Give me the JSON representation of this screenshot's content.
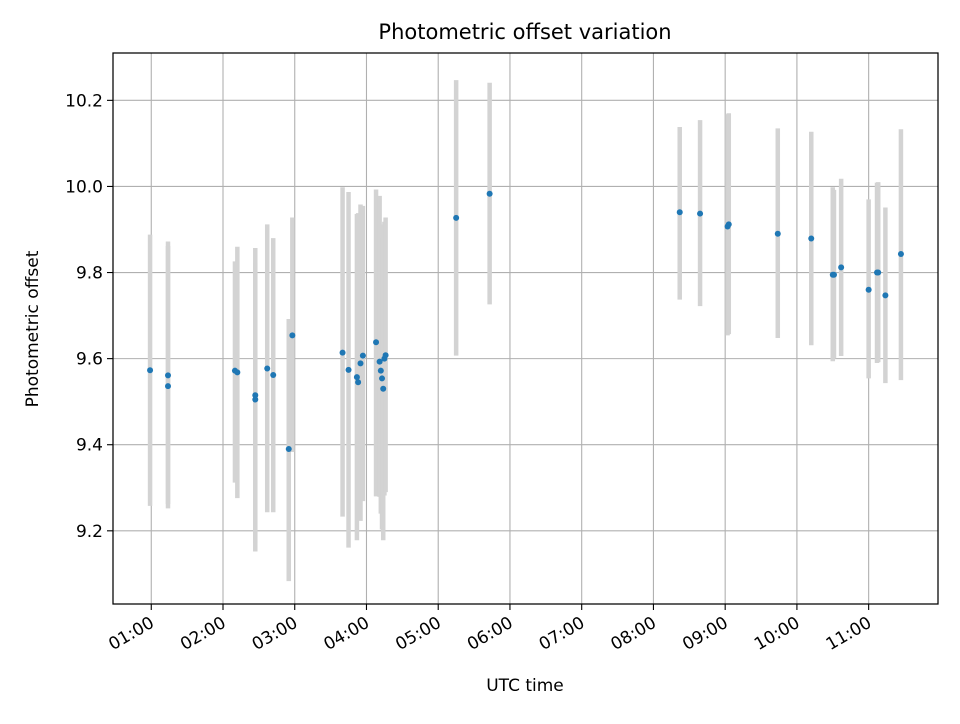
{
  "chart_data": {
    "type": "scatter",
    "title": "Photometric offset variation",
    "xlabel": "UTC time",
    "ylabel": "Photometric offset",
    "x_axis": "time",
    "x_ticks": [
      "01:00",
      "02:00",
      "03:00",
      "04:00",
      "05:00",
      "06:00",
      "07:00",
      "08:00",
      "09:00",
      "10:00",
      "11:00"
    ],
    "y_ticks": [
      "9.2",
      "9.4",
      "9.6",
      "9.8",
      "10.0",
      "10.2"
    ],
    "xlim": [
      "00:28",
      "11:58"
    ],
    "ylim": [
      9.03,
      10.31
    ],
    "grid": true,
    "marker_color": "#1f77b4",
    "errorbar_color": "#d3d3d3",
    "points": [
      {
        "x": "00:59",
        "y": 9.573,
        "err_low": 9.258,
        "err_high": 9.888
      },
      {
        "x": "01:14",
        "y": 9.561,
        "err_low": 9.262,
        "err_high": 9.862
      },
      {
        "x": "01:14",
        "y": 9.536,
        "err_low": 9.252,
        "err_high": 9.872
      },
      {
        "x": "02:10",
        "y": 9.572,
        "err_low": 9.312,
        "err_high": 9.826
      },
      {
        "x": "02:12",
        "y": 9.568,
        "err_low": 9.276,
        "err_high": 9.86
      },
      {
        "x": "02:27",
        "y": 9.515,
        "err_low": 9.171,
        "err_high": 9.857
      },
      {
        "x": "02:27",
        "y": 9.505,
        "err_low": 9.152,
        "err_high": 9.822
      },
      {
        "x": "02:37",
        "y": 9.577,
        "err_low": 9.243,
        "err_high": 9.912
      },
      {
        "x": "02:42",
        "y": 9.562,
        "err_low": 9.243,
        "err_high": 9.88
      },
      {
        "x": "02:55",
        "y": 9.39,
        "err_low": 9.083,
        "err_high": 9.692
      },
      {
        "x": "02:58",
        "y": 9.654,
        "err_low": 9.383,
        "err_high": 9.928
      },
      {
        "x": "03:40",
        "y": 9.614,
        "err_low": 9.233,
        "err_high": 9.998
      },
      {
        "x": "03:45",
        "y": 9.574,
        "err_low": 9.161,
        "err_high": 9.987
      },
      {
        "x": "03:52",
        "y": 9.557,
        "err_low": 9.178,
        "err_high": 9.936
      },
      {
        "x": "03:53",
        "y": 9.545,
        "err_low": 9.27,
        "err_high": 9.938
      },
      {
        "x": "03:55",
        "y": 9.589,
        "err_low": 9.223,
        "err_high": 9.958
      },
      {
        "x": "03:57",
        "y": 9.607,
        "err_low": 9.269,
        "err_high": 9.955
      },
      {
        "x": "04:08",
        "y": 9.638,
        "err_low": 9.28,
        "err_high": 9.993
      },
      {
        "x": "04:11",
        "y": 9.593,
        "err_low": 9.279,
        "err_high": 9.978
      },
      {
        "x": "04:12",
        "y": 9.572,
        "err_low": 9.24,
        "err_high": 9.91
      },
      {
        "x": "04:13",
        "y": 9.554,
        "err_low": 9.203,
        "err_high": 9.912
      },
      {
        "x": "04:14",
        "y": 9.53,
        "err_low": 9.178,
        "err_high": 9.882
      },
      {
        "x": "04:15",
        "y": 9.6,
        "err_low": 9.282,
        "err_high": 9.918
      },
      {
        "x": "04:16",
        "y": 9.608,
        "err_low": 9.29,
        "err_high": 9.928
      },
      {
        "x": "05:15",
        "y": 9.927,
        "err_low": 9.607,
        "err_high": 10.247
      },
      {
        "x": "05:43",
        "y": 9.983,
        "err_low": 9.726,
        "err_high": 10.241
      },
      {
        "x": "08:22",
        "y": 9.94,
        "err_low": 9.737,
        "err_high": 10.138
      },
      {
        "x": "08:39",
        "y": 9.937,
        "err_low": 9.722,
        "err_high": 10.154
      },
      {
        "x": "09:02",
        "y": 9.907,
        "err_low": 9.654,
        "err_high": 10.168
      },
      {
        "x": "09:03",
        "y": 9.912,
        "err_low": 9.657,
        "err_high": 10.17
      },
      {
        "x": "09:44",
        "y": 9.89,
        "err_low": 9.648,
        "err_high": 10.135
      },
      {
        "x": "10:12",
        "y": 9.879,
        "err_low": 9.631,
        "err_high": 10.127
      },
      {
        "x": "10:30",
        "y": 9.795,
        "err_low": 9.594,
        "err_high": 9.998
      },
      {
        "x": "10:31",
        "y": 9.795,
        "err_low": 9.6,
        "err_high": 9.992
      },
      {
        "x": "10:37",
        "y": 9.812,
        "err_low": 9.606,
        "err_high": 10.018
      },
      {
        "x": "11:00",
        "y": 9.76,
        "err_low": 9.554,
        "err_high": 9.97
      },
      {
        "x": "11:07",
        "y": 9.8,
        "err_low": 9.59,
        "err_high": 10.009
      },
      {
        "x": "11:08",
        "y": 9.8,
        "err_low": 9.592,
        "err_high": 10.01
      },
      {
        "x": "11:14",
        "y": 9.747,
        "err_low": 9.543,
        "err_high": 9.951
      },
      {
        "x": "11:27",
        "y": 9.843,
        "err_low": 9.55,
        "err_high": 10.133
      }
    ]
  }
}
